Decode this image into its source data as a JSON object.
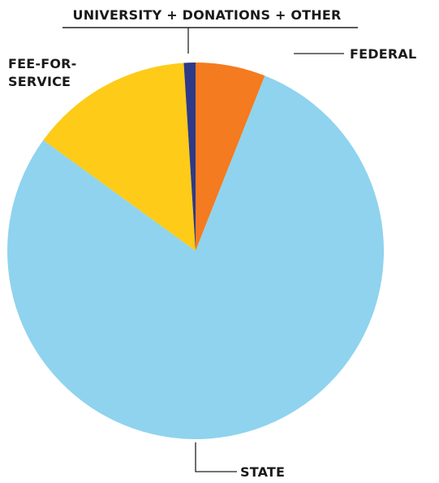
{
  "chart_data": {
    "type": "pie",
    "title": "",
    "start_angle_deg": 0,
    "direction": "clockwise",
    "slices": [
      {
        "label": "FEDERAL",
        "value": 6.0,
        "color": "#F47B20"
      },
      {
        "label": "STATE",
        "value": 79.0,
        "color": "#8FD3EE"
      },
      {
        "label": "FEE-FOR-SERVICE",
        "label_lines": [
          "FEE-FOR-",
          "SERVICE"
        ],
        "value": 14.0,
        "color": "#FDCB18"
      },
      {
        "label": "UNIVERSITY + DONATIONS + OTHER",
        "value": 1.0,
        "color": "#2E3A87"
      }
    ]
  }
}
